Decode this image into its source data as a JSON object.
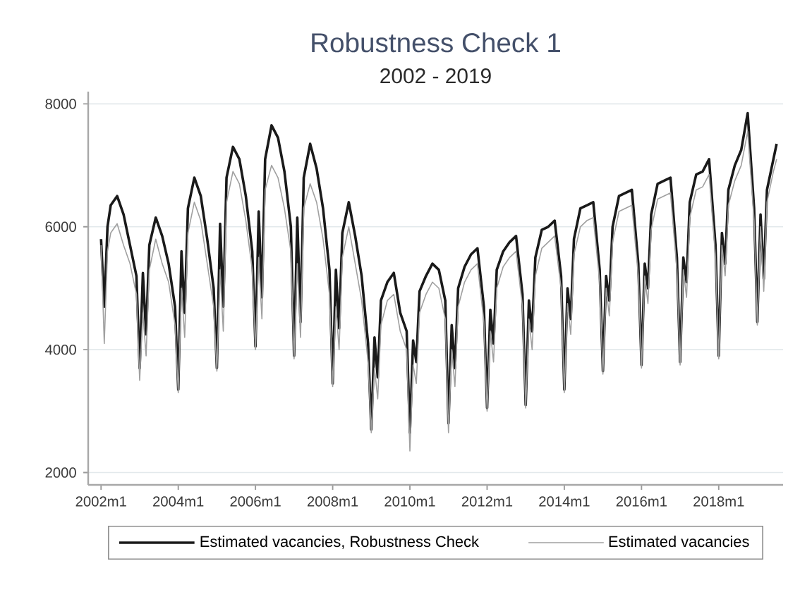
{
  "chart_data": {
    "type": "line",
    "title": "Robustness Check 1",
    "subtitle": "2002 - 2019",
    "x": [
      "2002-01",
      "2002-02",
      "2002-03",
      "2002-04",
      "2002-06",
      "2002-08",
      "2002-10",
      "2002-12",
      "2003-01",
      "2003-02",
      "2003-03",
      "2003-04",
      "2003-06",
      "2003-08",
      "2003-10",
      "2003-12",
      "2004-01",
      "2004-02",
      "2004-03",
      "2004-04",
      "2004-06",
      "2004-08",
      "2004-10",
      "2004-12",
      "2005-01",
      "2005-02",
      "2005-03",
      "2005-04",
      "2005-06",
      "2005-08",
      "2005-10",
      "2005-12",
      "2006-01",
      "2006-02",
      "2006-03",
      "2006-04",
      "2006-06",
      "2006-08",
      "2006-10",
      "2006-12",
      "2007-01",
      "2007-02",
      "2007-03",
      "2007-04",
      "2007-06",
      "2007-08",
      "2007-10",
      "2007-12",
      "2008-01",
      "2008-02",
      "2008-03",
      "2008-04",
      "2008-06",
      "2008-08",
      "2008-10",
      "2008-12",
      "2009-01",
      "2009-02",
      "2009-03",
      "2009-04",
      "2009-06",
      "2009-08",
      "2009-10",
      "2009-12",
      "2010-01",
      "2010-02",
      "2010-03",
      "2010-04",
      "2010-06",
      "2010-08",
      "2010-10",
      "2010-12",
      "2011-01",
      "2011-02",
      "2011-03",
      "2011-04",
      "2011-06",
      "2011-08",
      "2011-10",
      "2011-12",
      "2012-01",
      "2012-02",
      "2012-03",
      "2012-04",
      "2012-06",
      "2012-08",
      "2012-10",
      "2012-12",
      "2013-01",
      "2013-02",
      "2013-03",
      "2013-04",
      "2013-06",
      "2013-08",
      "2013-10",
      "2013-12",
      "2014-01",
      "2014-02",
      "2014-03",
      "2014-04",
      "2014-06",
      "2014-08",
      "2014-10",
      "2014-12",
      "2015-01",
      "2015-02",
      "2015-03",
      "2015-04",
      "2015-06",
      "2015-08",
      "2015-10",
      "2015-12",
      "2016-01",
      "2016-02",
      "2016-03",
      "2016-04",
      "2016-06",
      "2016-08",
      "2016-10",
      "2016-12",
      "2017-01",
      "2017-02",
      "2017-03",
      "2017-04",
      "2017-06",
      "2017-08",
      "2017-10",
      "2017-12",
      "2018-01",
      "2018-02",
      "2018-03",
      "2018-04",
      "2018-06",
      "2018-08",
      "2018-10",
      "2018-12",
      "2019-01",
      "2019-02",
      "2019-03",
      "2019-04",
      "2019-06",
      "2019-07"
    ],
    "series": [
      {
        "name": "Estimated vacancies, Robustness Check",
        "color": "#1a1a1a",
        "values": [
          5800,
          4700,
          6000,
          6350,
          6500,
          6200,
          5700,
          5200,
          3700,
          5250,
          4250,
          5700,
          6150,
          5850,
          5400,
          4700,
          3350,
          5600,
          4600,
          6300,
          6800,
          6500,
          5800,
          5000,
          3700,
          6050,
          4700,
          6800,
          7300,
          7100,
          6500,
          5600,
          4050,
          6250,
          4850,
          7100,
          7650,
          7450,
          6900,
          6000,
          3900,
          6150,
          4450,
          6800,
          7350,
          6950,
          6300,
          5300,
          3450,
          5300,
          4350,
          5900,
          6400,
          5850,
          5200,
          4100,
          2700,
          4200,
          3550,
          4800,
          5100,
          5250,
          4600,
          4300,
          2650,
          4150,
          3800,
          4950,
          5200,
          5400,
          5300,
          4800,
          2800,
          4400,
          3700,
          5000,
          5350,
          5550,
          5650,
          4700,
          3050,
          4650,
          4100,
          5300,
          5600,
          5750,
          5850,
          4900,
          3100,
          4800,
          4300,
          5500,
          5950,
          6000,
          6100,
          5200,
          3350,
          5000,
          4500,
          5800,
          6300,
          6350,
          6400,
          5300,
          3650,
          5200,
          4800,
          6000,
          6500,
          6550,
          6600,
          5400,
          3750,
          5400,
          5000,
          6200,
          6700,
          6750,
          6800,
          5500,
          3800,
          5500,
          5100,
          6400,
          6850,
          6900,
          7100,
          5700,
          3900,
          5900,
          5400,
          6600,
          7000,
          7250,
          7850,
          6300,
          4450,
          6200,
          5150,
          6600,
          7100,
          7350
        ]
      },
      {
        "name": "Estimated vacancies",
        "color": "#a0a0a0",
        "values": [
          5700,
          4100,
          5600,
          5900,
          6050,
          5700,
          5400,
          4900,
          3500,
          4600,
          3900,
          5300,
          5800,
          5400,
          5100,
          4400,
          3300,
          5000,
          4200,
          5900,
          6400,
          6100,
          5400,
          4700,
          3650,
          5300,
          4300,
          6400,
          6900,
          6700,
          6100,
          5300,
          4000,
          5500,
          4500,
          6600,
          7000,
          6800,
          6300,
          5600,
          3850,
          5400,
          4200,
          6300,
          6700,
          6400,
          5800,
          4900,
          3400,
          4700,
          4000,
          5500,
          6000,
          5400,
          4800,
          3800,
          2650,
          3700,
          3200,
          4400,
          4800,
          4900,
          4300,
          4000,
          2350,
          3750,
          3450,
          4600,
          4900,
          5100,
          5000,
          4500,
          2650,
          4000,
          3400,
          4700,
          5100,
          5300,
          5400,
          4450,
          3000,
          4300,
          3800,
          5000,
          5350,
          5500,
          5600,
          4700,
          3050,
          4500,
          4000,
          5200,
          5650,
          5750,
          5850,
          5000,
          3300,
          4750,
          4250,
          5550,
          6000,
          6100,
          6150,
          5100,
          3600,
          5000,
          4550,
          5750,
          6250,
          6300,
          6350,
          5200,
          3700,
          5200,
          4750,
          5950,
          6450,
          6500,
          6550,
          5300,
          3750,
          5300,
          4850,
          6150,
          6600,
          6650,
          6850,
          5500,
          3850,
          5700,
          5200,
          6350,
          6750,
          7000,
          7550,
          6100,
          4400,
          6000,
          4950,
          6400,
          6900,
          7100
        ]
      }
    ],
    "xlim": [
      "2001-09",
      "2019-09"
    ],
    "xticks": [
      {
        "value": "2002-01",
        "label": "2002m1"
      },
      {
        "value": "2004-01",
        "label": "2004m1"
      },
      {
        "value": "2006-01",
        "label": "2006m1"
      },
      {
        "value": "2008-01",
        "label": "2008m1"
      },
      {
        "value": "2010-01",
        "label": "2010m1"
      },
      {
        "value": "2012-01",
        "label": "2012m1"
      },
      {
        "value": "2014-01",
        "label": "2014m1"
      },
      {
        "value": "2016-01",
        "label": "2016m1"
      },
      {
        "value": "2018-01",
        "label": "2018m1"
      }
    ],
    "ylim": [
      1800,
      8200
    ],
    "yticks": [
      2000,
      4000,
      6000,
      8000
    ],
    "grid": "y",
    "legend": "bottom",
    "line_style": "solid"
  }
}
